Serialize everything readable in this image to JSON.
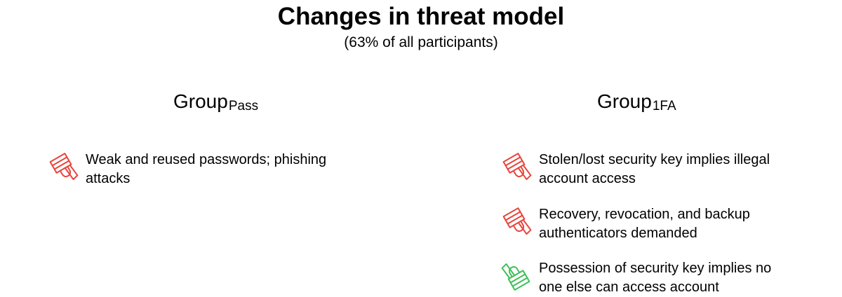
{
  "title": "Changes in threat model",
  "subtitle": "(63% of all participants)",
  "groups": [
    {
      "name": "Group",
      "sub": "Pass",
      "items": [
        {
          "icon": "thumbs-down-icon",
          "color": "#e8453c",
          "text": "Weak and reused passwords; phishing attacks"
        }
      ]
    },
    {
      "name": "Group",
      "sub": "1FA",
      "items": [
        {
          "icon": "thumbs-down-icon",
          "color": "#e8453c",
          "text": "Stolen/lost security key implies illegal account access"
        },
        {
          "icon": "thumbs-down-icon",
          "color": "#e8453c",
          "text": "Recovery, revocation, and backup authenticators demanded"
        },
        {
          "icon": "thumbs-up-icon",
          "color": "#3fbf5a",
          "text": "Possession of security key implies no one else can access account"
        }
      ]
    }
  ]
}
